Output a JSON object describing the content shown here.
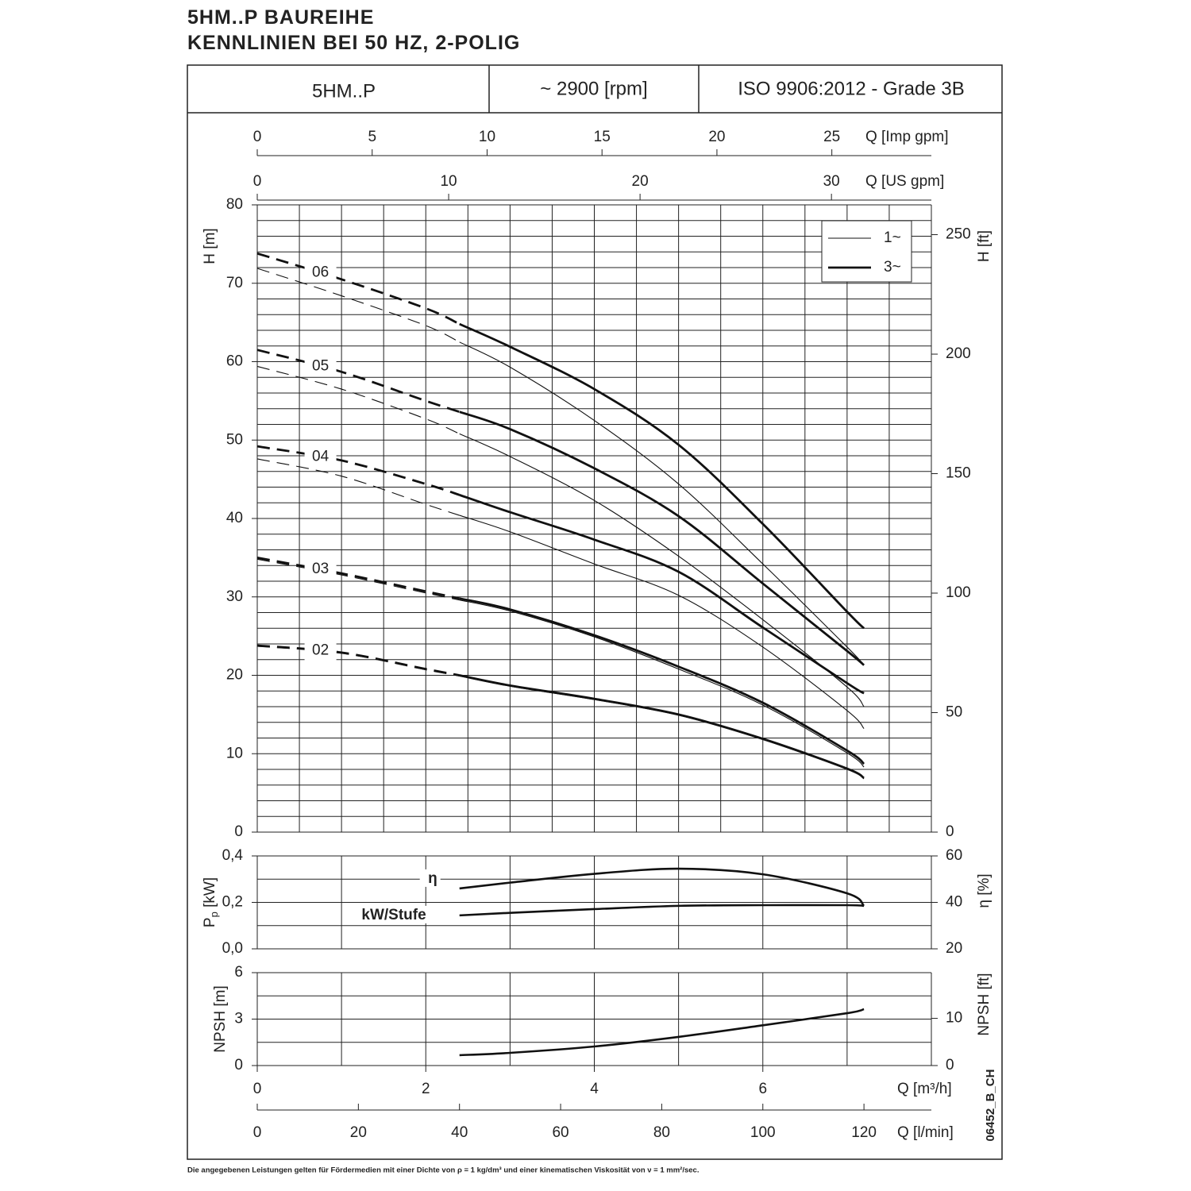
{
  "title_lines": [
    "5HM..P BAUREIHE",
    "KENNLINIEN BEI 50 HZ, 2-POLIG"
  ],
  "header": {
    "model": "5HM..P",
    "speed": "~ 2900 [rpm]",
    "standard": "ISO 9906:2012 - Grade 3B"
  },
  "footnote": "Die angegebenen Leistungen gelten für Fördermedien mit einer Dichte von ρ = 1 kg/dm³ und einer kinematischen Viskosität von ν = 1 mm²/sec.",
  "code": "06452_B_CH",
  "chart_data": [
    {
      "type": "line",
      "ylabel": "H [m]",
      "y2label": "H [ft]",
      "xlim": [
        0,
        8
      ],
      "ylim": [
        0,
        80
      ],
      "yticks": [
        0,
        10,
        20,
        30,
        40,
        50,
        60,
        70,
        80
      ],
      "y2lim": [
        0,
        262.47
      ],
      "y2ticks": [
        0,
        50,
        100,
        150,
        200,
        250
      ],
      "xgrid": [
        0,
        0.5,
        1,
        1.5,
        2,
        2.5,
        3,
        3.5,
        4,
        4.5,
        5,
        5.5,
        6,
        6.5,
        7,
        7.5,
        8
      ],
      "ygrid": [
        0,
        2,
        4,
        6,
        8,
        10,
        12,
        14,
        16,
        18,
        20,
        22,
        24,
        26,
        28,
        30,
        32,
        34,
        36,
        38,
        40,
        42,
        44,
        46,
        48,
        50,
        52,
        54,
        56,
        58,
        60,
        62,
        64,
        66,
        68,
        70,
        72,
        74,
        76,
        78,
        80
      ],
      "top_axes": [
        {
          "label": "Q [Imp gpm]",
          "lim": [
            0,
            29.33
          ],
          "ticks": [
            0,
            5,
            10,
            15,
            20,
            25
          ]
        },
        {
          "label": "Q [US gpm]",
          "lim": [
            0,
            35.22
          ],
          "ticks": [
            0,
            10,
            20,
            30
          ]
        }
      ],
      "dashed_below_x": 2.4,
      "legend": "upper right",
      "color": "#111111",
      "styles": [
        {
          "name": "1~",
          "stroke_width": 1.1
        },
        {
          "name": "3~",
          "stroke_width": 2.8
        }
      ],
      "x": [
        0,
        1,
        2,
        2.4,
        3,
        4,
        5,
        6,
        7,
        7.2
      ],
      "models": [
        {
          "label": "06",
          "series": [
            {
              "style": 0,
              "values": [
                71.9,
                68.4,
                64.6,
                62.5,
                59.3,
                52.5,
                44.4,
                34.2,
                23.6,
                21.3
              ]
            },
            {
              "style": 1,
              "values": [
                73.8,
                70.5,
                66.8,
                64.8,
                61.9,
                56.5,
                49.4,
                39.3,
                28.1,
                26.0
              ]
            }
          ]
        },
        {
          "label": "05",
          "series": [
            {
              "style": 0,
              "values": [
                59.4,
                56.5,
                52.7,
                50.8,
                47.9,
                42.3,
                35.2,
                27.1,
                18.5,
                16.0
              ]
            },
            {
              "style": 1,
              "values": [
                61.5,
                58.7,
                55.0,
                53.6,
                51.4,
                46.4,
                40.3,
                31.7,
                23.1,
                21.3
              ]
            }
          ]
        },
        {
          "label": "04",
          "series": [
            {
              "style": 0,
              "values": [
                47.6,
                45.4,
                41.8,
                40.4,
                38.3,
                34.2,
                30.2,
                23.6,
                15.5,
                13.2
              ]
            },
            {
              "style": 1,
              "values": [
                49.2,
                47.4,
                44.4,
                43.0,
                40.8,
                37.3,
                33.2,
                26.1,
                19.0,
                17.7
              ]
            }
          ]
        },
        {
          "label": "03",
          "series": [
            {
              "style": 0,
              "values": [
                34.8,
                32.8,
                30.5,
                29.6,
                28.2,
                24.9,
                20.8,
                16.2,
                10.1,
                8.3
              ]
            },
            {
              "style": 1,
              "values": [
                35.0,
                33.0,
                30.7,
                29.8,
                28.4,
                25.1,
                21.1,
                16.5,
                10.4,
                8.7
              ]
            }
          ]
        },
        {
          "label": "02",
          "series": [
            {
              "style": 0,
              "values": [
                23.7,
                22.8,
                20.7,
                19.9,
                18.6,
                16.9,
                14.9,
                11.8,
                8.0,
                6.8
              ]
            },
            {
              "style": 1,
              "values": [
                23.8,
                22.9,
                20.8,
                20.0,
                18.7,
                17.0,
                15.0,
                11.9,
                8.1,
                6.9
              ]
            }
          ]
        }
      ]
    },
    {
      "type": "line",
      "ylabel": "P",
      "ylabel_sub": "p",
      "ylabel_unit": " [kW]",
      "y2label": "η [%]",
      "xlim": [
        0,
        8
      ],
      "ylim": [
        0,
        0.4
      ],
      "yticks": [
        {
          "value": 0,
          "label": "0,0"
        },
        {
          "value": 0.2,
          "label": "0,2"
        },
        {
          "value": 0.4,
          "label": "0,4"
        }
      ],
      "y2lim": [
        20,
        60
      ],
      "y2ticks": [
        20,
        40,
        60
      ],
      "xgrid": [
        0,
        1,
        2,
        3,
        4,
        5,
        6,
        7,
        8
      ],
      "ygrid": [
        0,
        0.1,
        0.2,
        0.3,
        0.4
      ],
      "color": "#111111",
      "series": [
        {
          "name": "η",
          "axis": "y2",
          "x": [
            2.4,
            3,
            4,
            5,
            6,
            7,
            7.2
          ],
          "values": [
            46.0,
            48.5,
            52.3,
            54.5,
            52.1,
            43.9,
            38.5
          ]
        },
        {
          "name": "kW/Stufe",
          "x": [
            2.4,
            3,
            4,
            5,
            6,
            7,
            7.2
          ],
          "values": [
            0.144,
            0.155,
            0.171,
            0.185,
            0.188,
            0.188,
            0.185
          ]
        }
      ]
    },
    {
      "type": "line",
      "ylabel": "NPSH [m]",
      "y2label": "NPSH [ft]",
      "xlim": [
        0,
        8
      ],
      "ylim": [
        0,
        6
      ],
      "yticks": [
        0,
        3,
        6
      ],
      "y2lim": [
        0,
        19.685
      ],
      "y2ticks": [
        0,
        10
      ],
      "xgrid": [
        0,
        1,
        2,
        3,
        4,
        5,
        6,
        7,
        8
      ],
      "ygrid": [
        0,
        1.5,
        3,
        4.5,
        6
      ],
      "xlabel": "Q [m³/h]",
      "xticks": [
        0,
        2,
        4,
        6
      ],
      "bottom_axis": {
        "label": "Q [l/min]",
        "lim": [
          0,
          133.33
        ],
        "ticks": [
          0,
          20,
          40,
          60,
          80,
          100,
          120
        ]
      },
      "color": "#111111",
      "series": [
        {
          "x": [
            2.4,
            3,
            4,
            5,
            6,
            7,
            7.2
          ],
          "values": [
            0.67,
            0.82,
            1.23,
            1.85,
            2.6,
            3.38,
            3.64
          ]
        }
      ]
    }
  ]
}
